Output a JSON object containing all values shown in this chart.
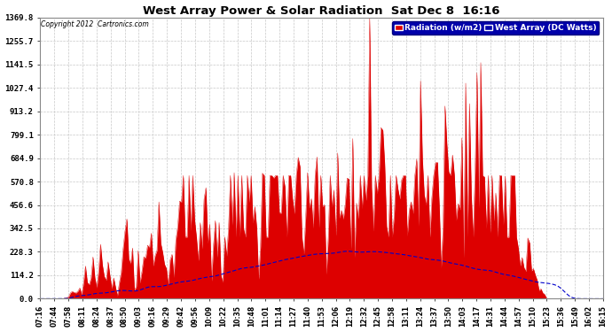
{
  "title": "West Array Power & Solar Radiation  Sat Dec 8  16:16",
  "copyright": "Copyright 2012  Cartronics.com",
  "legend_radiation": "Radiation (w/m2)",
  "legend_west": "West Array (DC Watts)",
  "y_max": 1369.8,
  "y_ticks": [
    0.0,
    114.2,
    228.3,
    342.5,
    456.6,
    570.8,
    684.9,
    799.1,
    913.2,
    1027.4,
    1141.5,
    1255.7,
    1369.8
  ],
  "background_color": "#ffffff",
  "grid_color": "#c8c8c8",
  "radiation_fill_color": "#dd0000",
  "radiation_line_color": "#dd0000",
  "west_line_color": "#0000cc",
  "n_points": 300
}
